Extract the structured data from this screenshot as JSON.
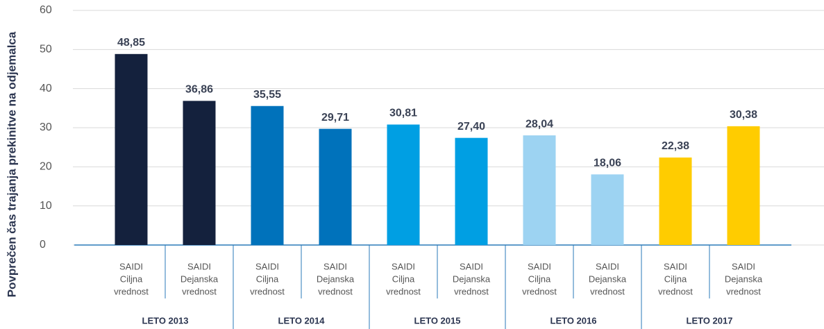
{
  "chart_data": {
    "type": "bar",
    "y_label": "Povprečen čas trajanja prekinitve na odjemalca",
    "categories": [
      [
        "SAIDI",
        "Ciljna",
        "vrednost"
      ],
      [
        "SAIDI",
        "Dejanska",
        "vrednost"
      ],
      [
        "SAIDI",
        "Ciljna",
        "vrednost"
      ],
      [
        "SAIDI",
        "Dejanska",
        "vrednost"
      ],
      [
        "SAIDI",
        "Ciljna",
        "vrednost"
      ],
      [
        "SAIDI",
        "Dejanska",
        "vrednost"
      ],
      [
        "SAIDI",
        "Ciljna",
        "vrednost"
      ],
      [
        "SAIDI",
        "Dejanska",
        "vrednost"
      ],
      [
        "SAIDI",
        "Ciljna",
        "vrednost"
      ],
      [
        "SAIDI",
        "Dejanska",
        "vrednost"
      ]
    ],
    "groups": [
      "LETO 2013",
      "LETO 2014",
      "LETO 2015",
      "LETO 2016",
      "LETO 2017"
    ],
    "values": [
      48.85,
      36.86,
      35.55,
      29.71,
      30.81,
      27.4,
      28.04,
      18.06,
      22.38,
      30.38
    ],
    "value_labels": [
      "48,85",
      "36,86",
      "35,55",
      "29,71",
      "30,81",
      "27,40",
      "28,04",
      "18,06",
      "22,38",
      "30,38"
    ],
    "colors": [
      "#14213d",
      "#14213d",
      "#0072bb",
      "#0072bb",
      "#009fe3",
      "#009fe3",
      "#9dd3f2",
      "#9dd3f2",
      "#ffcc00",
      "#ffcc00"
    ],
    "ylim": [
      0,
      60
    ],
    "yticks": [
      0,
      10,
      20,
      30,
      40,
      50,
      60
    ],
    "grid": true
  }
}
